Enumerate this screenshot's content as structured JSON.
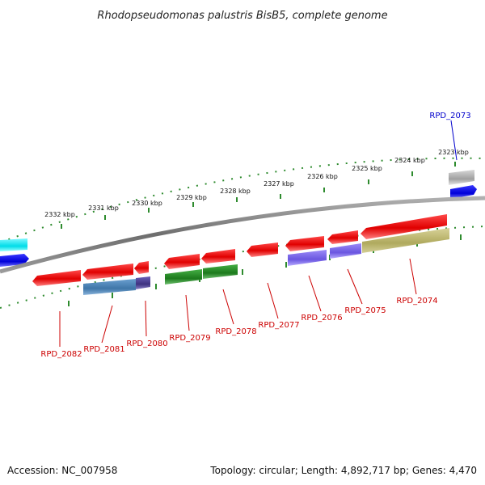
{
  "title": "Rhodopseudomonas palustris BisB5, complete genome",
  "footer": {
    "accession": "Accession: NC_007958",
    "summary": "Topology: circular; Length: 4,892,717 bp; Genes: 4,470"
  },
  "ticks": [
    {
      "label": "2332 kbp",
      "kbp": 2332
    },
    {
      "label": "2331 kbp",
      "kbp": 2331
    },
    {
      "label": "2330 kbp",
      "kbp": 2330
    },
    {
      "label": "2329 kbp",
      "kbp": 2329
    },
    {
      "label": "2328 kbp",
      "kbp": 2328
    },
    {
      "label": "2327 kbp",
      "kbp": 2327
    },
    {
      "label": "2326 kbp",
      "kbp": 2326
    },
    {
      "label": "2325 kbp",
      "kbp": 2325
    },
    {
      "label": "2324 kbp",
      "kbp": 2324
    },
    {
      "label": "2323 kbp",
      "kbp": 2323
    }
  ],
  "gene_labels": [
    {
      "id": "RPD_2073",
      "text": "RPD_2073",
      "color": "#0000cc"
    },
    {
      "id": "RPD_2074",
      "text": "RPD_2074",
      "color": "#cc0000"
    },
    {
      "id": "RPD_2075",
      "text": "RPD_2075",
      "color": "#cc0000"
    },
    {
      "id": "RPD_2076",
      "text": "RPD_2076",
      "color": "#cc0000"
    },
    {
      "id": "RPD_2077",
      "text": "RPD_2077",
      "color": "#cc0000"
    },
    {
      "id": "RPD_2078",
      "text": "RPD_2078",
      "color": "#cc0000"
    },
    {
      "id": "RPD_2079",
      "text": "RPD_2079",
      "color": "#cc0000"
    },
    {
      "id": "RPD_2080",
      "text": "RPD_2080",
      "color": "#cc0000"
    },
    {
      "id": "RPD_2081",
      "text": "RPD_2081",
      "color": "#cc0000"
    },
    {
      "id": "RPD_2082",
      "text": "RPD_2082",
      "color": "#cc0000"
    }
  ],
  "colors": {
    "backbone": "#808080",
    "tick": "#2e8b2e",
    "cds": "#ee1111",
    "rna_blue": "#0000ee",
    "cyan": "#00e5ee",
    "steel": "#4682b4",
    "slate": "#483d8b",
    "green": "#228b22",
    "purple": "#7b68ee",
    "khaki": "#bdb76b",
    "gray": "#a9a9a9"
  }
}
